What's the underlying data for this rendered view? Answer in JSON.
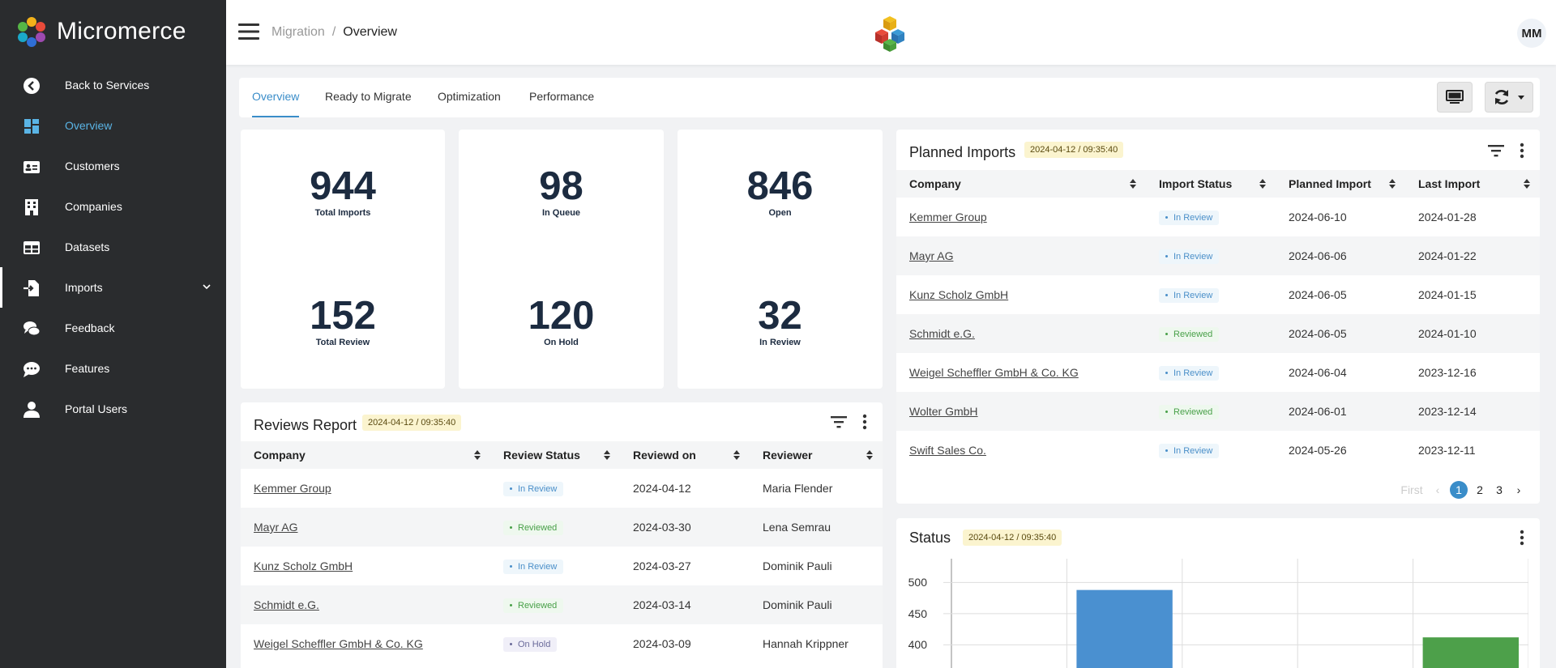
{
  "app": {
    "name": "Micromerce"
  },
  "sidebar": {
    "items": [
      {
        "label": "Back to Services"
      },
      {
        "label": "Overview"
      },
      {
        "label": "Customers"
      },
      {
        "label": "Companies"
      },
      {
        "label": "Datasets"
      },
      {
        "label": "Imports"
      },
      {
        "label": "Feedback"
      },
      {
        "label": "Features"
      },
      {
        "label": "Portal Users"
      }
    ],
    "active_color": "#5ab4e5"
  },
  "header": {
    "breadcrumb": [
      "Migration",
      "Overview"
    ],
    "avatar": "MM"
  },
  "tabs": [
    "Overview",
    "Ready to Migrate",
    "Optimization",
    "Performance"
  ],
  "stats": [
    {
      "value": "944",
      "label": "Total Imports"
    },
    {
      "value": "98",
      "label": "In Queue"
    },
    {
      "value": "846",
      "label": "Open"
    },
    {
      "value": "152",
      "label": "Total Review"
    },
    {
      "value": "120",
      "label": "On Hold"
    },
    {
      "value": "32",
      "label": "In Review"
    }
  ],
  "planned": {
    "title": "Planned Imports",
    "date": "2024-04-12 / 09:35:40",
    "columns": [
      "Company",
      "Import Status",
      "Planned Import",
      "Last Import"
    ],
    "rows": [
      {
        "company": "Kemmer Group",
        "status": "In Review",
        "planned": "2024-06-10",
        "last": "2024-01-28"
      },
      {
        "company": "Mayr AG",
        "status": "In Review",
        "planned": "2024-06-06",
        "last": "2024-01-22"
      },
      {
        "company": "Kunz Scholz GmbH",
        "status": "In Review",
        "planned": "2024-06-05",
        "last": "2024-01-15"
      },
      {
        "company": "Schmidt e.G.",
        "status": "Reviewed",
        "planned": "2024-06-05",
        "last": "2024-01-10"
      },
      {
        "company": "Weigel Scheffler GmbH & Co. KG",
        "status": "In Review",
        "planned": "2024-06-04",
        "last": "2023-12-16"
      },
      {
        "company": "Wolter GmbH",
        "status": "Reviewed",
        "planned": "2024-06-01",
        "last": "2023-12-14"
      },
      {
        "company": "Swift Sales Co.",
        "status": "In Review",
        "planned": "2024-05-26",
        "last": "2023-12-11"
      }
    ],
    "pagination": {
      "first": "First",
      "prev": "‹",
      "pages": [
        "1",
        "2",
        "3"
      ],
      "current": "1",
      "next": "›"
    }
  },
  "reviews": {
    "title": "Reviews Report",
    "date": "2024-04-12 / 09:35:40",
    "columns": [
      "Company",
      "Review Status",
      "Reviewd on",
      "Reviewer"
    ],
    "rows": [
      {
        "company": "Kemmer Group",
        "status": "In Review",
        "date": "2024-04-12",
        "reviewer": "Maria Flender"
      },
      {
        "company": "Mayr AG",
        "status": "Reviewed",
        "date": "2024-03-30",
        "reviewer": "Lena Semrau"
      },
      {
        "company": "Kunz Scholz GmbH",
        "status": "In Review",
        "date": "2024-03-27",
        "reviewer": "Dominik Pauli"
      },
      {
        "company": "Schmidt e.G.",
        "status": "Reviewed",
        "date": "2024-03-14",
        "reviewer": "Dominik Pauli"
      },
      {
        "company": "Weigel Scheffler GmbH & Co. KG",
        "status": "On Hold",
        "date": "2024-03-09",
        "reviewer": "Hannah Krippner"
      }
    ]
  },
  "status_panel": {
    "title": "Status",
    "date": "2024-04-12 / 09:35:40"
  },
  "chart_data": {
    "type": "bar",
    "title": "",
    "ylim": [
      370,
      520
    ],
    "yticks": [
      500,
      450,
      400
    ],
    "categories": [
      "",
      "",
      "",
      "",
      ""
    ],
    "values": [
      null,
      488,
      null,
      null,
      412
    ],
    "colors": [
      "#4a90d0",
      "#4a90d0",
      "#4a90d0",
      "#4a90d0",
      "#4da04a"
    ],
    "grid": true
  }
}
